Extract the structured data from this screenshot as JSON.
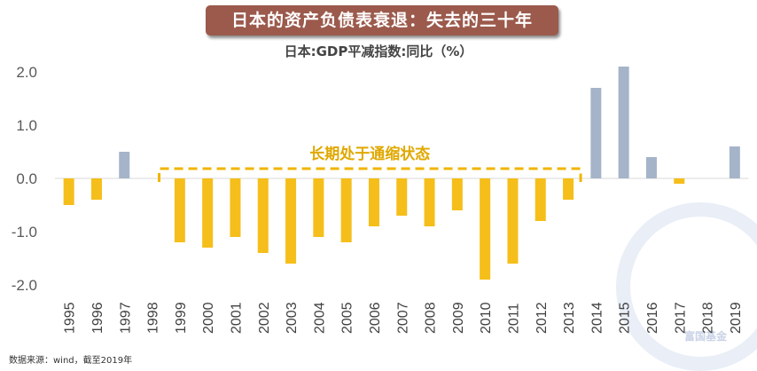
{
  "header": {
    "title": "日本的资产负债表衰退：失去的三十年",
    "subtitle": "日本:GDP平减指数:同比（%）"
  },
  "annotation": "长期处于通缩状态",
  "source": "数据来源：wind，截至2019年",
  "watermark": "富国基金",
  "colors": {
    "negative": "#f5be1a",
    "positive": "#a5b4c9",
    "banner": "#9b5a4c",
    "dash": "#f0b400"
  },
  "chart_data": {
    "type": "bar",
    "title": "日本的资产负债表衰退：失去的三十年",
    "subtitle": "日本:GDP平减指数:同比（%）",
    "categories": [
      "1995",
      "1996",
      "1997",
      "1998",
      "1999",
      "2000",
      "2001",
      "2002",
      "2003",
      "2004",
      "2005",
      "2006",
      "2007",
      "2008",
      "2009",
      "2010",
      "2011",
      "2012",
      "2013",
      "2014",
      "2015",
      "2016",
      "2017",
      "2018",
      "2019"
    ],
    "values": [
      -0.5,
      -0.4,
      0.5,
      0.0,
      -1.2,
      -1.3,
      -1.1,
      -1.4,
      -1.6,
      -1.1,
      -1.2,
      -0.9,
      -0.7,
      -0.9,
      -0.6,
      -1.9,
      -1.6,
      -0.8,
      -0.4,
      1.7,
      2.1,
      0.4,
      -0.1,
      0.0,
      0.6
    ],
    "ylim": [
      -2.0,
      2.0
    ],
    "yticks": [
      "-2.0",
      "-1.0",
      "0.0",
      "1.0",
      "2.0"
    ],
    "annotation_span": [
      "1998",
      "2013"
    ],
    "grid": false,
    "legend": "none"
  }
}
